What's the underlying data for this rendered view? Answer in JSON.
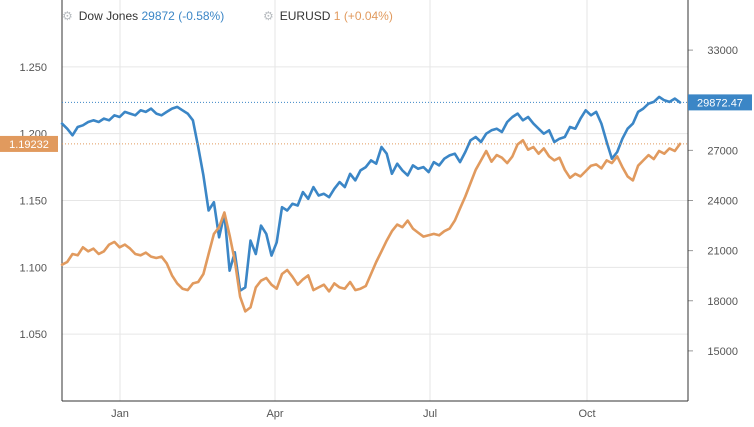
{
  "legend": [
    {
      "name": "Dow Jones",
      "value": "29872",
      "change": "(-0.58%)"
    },
    {
      "name": "EURUSD",
      "value": "1",
      "change": "(+0.04%)"
    }
  ],
  "colors": {
    "dow": "#3b86c6",
    "eur": "#e19a5e",
    "grid": "#e6e6e6",
    "axis": "#333333"
  },
  "chart_data": {
    "type": "line",
    "x_tick_labels": [
      "Jan",
      "Apr",
      "Jul",
      "Oct"
    ],
    "left_axis": {
      "ticks": [
        "1.250",
        "1.200",
        "1.150",
        "1.100",
        "1.050"
      ],
      "ylim": [
        1.0,
        1.3
      ]
    },
    "right_axis": {
      "ticks": [
        "33000",
        "30000",
        "27000",
        "24000",
        "21000",
        "18000",
        "15000"
      ],
      "ylim": [
        12000,
        36000
      ]
    },
    "series": [
      {
        "name": "Dow Jones",
        "axis": "right",
        "last_label": "29872.47",
        "values": [
          28600,
          28300,
          27900,
          28400,
          28500,
          28700,
          28800,
          28700,
          28900,
          28800,
          29100,
          29000,
          29300,
          29200,
          29100,
          29400,
          29300,
          29500,
          29200,
          29100,
          29300,
          29500,
          29600,
          29400,
          29200,
          28800,
          27200,
          25500,
          23400,
          23900,
          21800,
          23200,
          19800,
          20900,
          18600,
          18800,
          21600,
          20800,
          22500,
          22000,
          20700,
          21500,
          23600,
          23400,
          23800,
          23700,
          24500,
          24100,
          24800,
          24300,
          24400,
          24200,
          24700,
          25100,
          24800,
          25600,
          25200,
          25800,
          26000,
          26400,
          26200,
          27200,
          26800,
          25600,
          26200,
          25800,
          25500,
          26100,
          25900,
          26000,
          25700,
          26300,
          26100,
          26500,
          26700,
          26800,
          26300,
          26900,
          27600,
          27800,
          27500,
          28000,
          28200,
          28300,
          28100,
          28700,
          29000,
          29200,
          28800,
          29000,
          28600,
          28300,
          28000,
          28200,
          27500,
          27700,
          27800,
          28400,
          28300,
          28900,
          29400,
          29100,
          29300,
          28600,
          27500,
          26500,
          26900,
          27700,
          28300,
          28600,
          29300,
          29500,
          29800,
          29900,
          30200,
          30000,
          29900,
          30100,
          29872
        ]
      },
      {
        "name": "EURUSD",
        "axis": "left",
        "last_label": "1.19232",
        "values": [
          1.102,
          1.104,
          1.11,
          1.109,
          1.115,
          1.112,
          1.114,
          1.11,
          1.112,
          1.117,
          1.119,
          1.115,
          1.117,
          1.114,
          1.11,
          1.109,
          1.111,
          1.108,
          1.107,
          1.108,
          1.103,
          1.094,
          1.088,
          1.084,
          1.083,
          1.088,
          1.089,
          1.095,
          1.11,
          1.125,
          1.13,
          1.141,
          1.124,
          1.105,
          1.078,
          1.067,
          1.07,
          1.085,
          1.09,
          1.092,
          1.087,
          1.084,
          1.095,
          1.098,
          1.093,
          1.087,
          1.091,
          1.094,
          1.083,
          1.085,
          1.087,
          1.082,
          1.088,
          1.085,
          1.084,
          1.089,
          1.083,
          1.084,
          1.086,
          1.095,
          1.104,
          1.112,
          1.12,
          1.127,
          1.132,
          1.13,
          1.135,
          1.129,
          1.126,
          1.123,
          1.124,
          1.125,
          1.124,
          1.127,
          1.129,
          1.135,
          1.144,
          1.153,
          1.163,
          1.173,
          1.18,
          1.187,
          1.179,
          1.184,
          1.182,
          1.178,
          1.183,
          1.192,
          1.195,
          1.188,
          1.19,
          1.185,
          1.189,
          1.183,
          1.18,
          1.182,
          1.173,
          1.167,
          1.17,
          1.168,
          1.172,
          1.176,
          1.177,
          1.174,
          1.18,
          1.178,
          1.183,
          1.175,
          1.168,
          1.165,
          1.176,
          1.18,
          1.184,
          1.181,
          1.187,
          1.185,
          1.189,
          1.187,
          1.19232
        ]
      }
    ]
  }
}
